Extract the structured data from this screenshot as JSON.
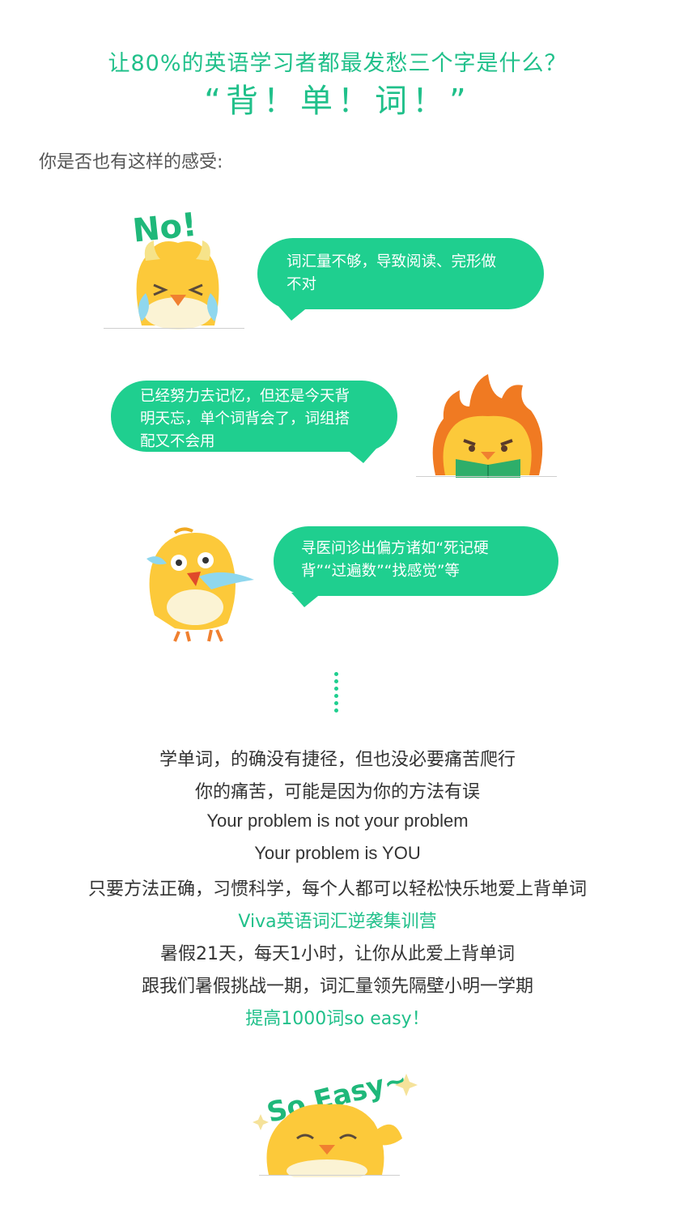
{
  "header": {
    "headline": "让80%的英语学习者都最发愁三个字是什么？",
    "keyword": "“背！单！词！”"
  },
  "intro": "你是否也有这样的感受:",
  "mascot_labels": {
    "no_sign": "No!",
    "so_easy": "So Easy~"
  },
  "bubbles": [
    {
      "lines": [
        "词汇量不够，导致阅读、完形做",
        "不对"
      ]
    },
    {
      "lines": [
        "已经努力去记忆，但还是今天背",
        "明天忘，单个词背会了，词组搭",
        "配又不会用"
      ]
    },
    {
      "lines": [
        "寻医问诊出偏方诸如“死记硬",
        "背”“过遍数”“找感觉”等"
      ]
    }
  ],
  "body_lines": [
    {
      "text": "学单词，的确没有捷径，但也没必要痛苦爬行",
      "style": "normal"
    },
    {
      "text": "你的痛苦，可能是因为你的方法有误",
      "style": "normal"
    },
    {
      "text": "Your problem is not your problem",
      "style": "en"
    },
    {
      "text": "Your problem is YOU",
      "style": "en"
    },
    {
      "text": "只要方法正确，习惯科学，每个人都可以轻松快乐地爱上背单词",
      "style": "normal"
    },
    {
      "text": "Viva英语词汇逆袭集训营",
      "style": "green"
    },
    {
      "text": "暑假21天，每天1小时，让你从此爱上背单词",
      "style": "normal"
    },
    {
      "text": "跟我们暑假挑战一期，词汇量领先隔壁小明一学期",
      "style": "normal"
    },
    {
      "text": "提高1000词so easy！",
      "style": "green"
    }
  ],
  "colors": {
    "accent": "#20c08a",
    "bubble": "#1fcf8f",
    "mascot_yellow": "#fcc93a",
    "flame": "#f07a22"
  },
  "icons": [
    "crying-chick-icon",
    "angry-chick-reading-icon",
    "sneezing-chick-icon",
    "happy-chick-icon",
    "vertical-dots-icon"
  ]
}
